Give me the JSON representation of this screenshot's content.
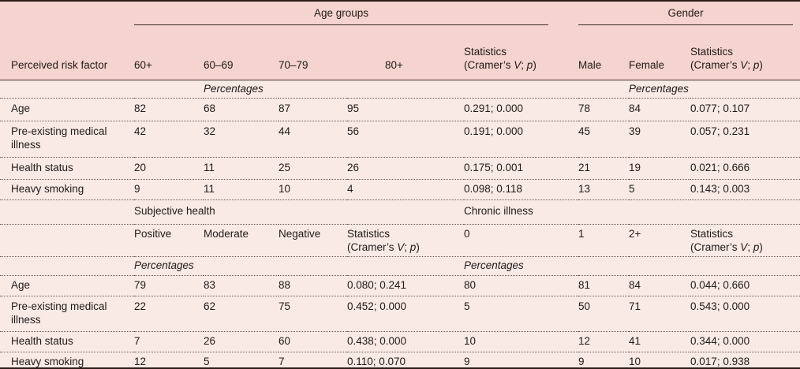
{
  "colors": {
    "header_bg": "#f5d3ce",
    "body_bg": "#f9eae6",
    "rule_dark": "#2b1d18",
    "text": "#201b19"
  },
  "header": {
    "risk_factor_label": "Perceived risk factor",
    "age_groups_label": "Age groups",
    "gender_label": "Gender",
    "age_cols": [
      "60+",
      "60–69",
      "70–79",
      "80+"
    ],
    "gender_cols": [
      "Male",
      "Female"
    ]
  },
  "stats_label": {
    "line1": "Statistics",
    "line2_prefix": "(Cramer’s ",
    "v": "V",
    "separator": "; ",
    "p": "p",
    "suffix": ")"
  },
  "section1": {
    "percentages_left": "Percentages",
    "percentages_right": "Percentages",
    "rows": [
      {
        "label": "Age",
        "values": [
          "82",
          "68",
          "87",
          "95"
        ],
        "stat1": "0.291; 0.000",
        "gender": [
          "78",
          "84"
        ],
        "stat2": "0.077; 0.107"
      },
      {
        "label": "Pre-existing medical illness",
        "values": [
          "42",
          "32",
          "44",
          "56"
        ],
        "stat1": "0.191; 0.000",
        "gender": [
          "45",
          "39"
        ],
        "stat2": "0.057; 0.231"
      },
      {
        "label": "Health status",
        "values": [
          "20",
          "11",
          "25",
          "26"
        ],
        "stat1": "0.175; 0.001",
        "gender": [
          "21",
          "19"
        ],
        "stat2": "0.021; 0.666"
      },
      {
        "label": "Heavy smoking",
        "values": [
          "9",
          "11",
          "10",
          "4"
        ],
        "stat1": "0.098; 0.118",
        "gender": [
          "13",
          "5"
        ],
        "stat2": "0.143; 0.003"
      }
    ]
  },
  "section2": {
    "subjective_health_label": "Subjective health",
    "chronic_illness_label": "Chronic illness",
    "subjective_cols": [
      "Positive",
      "Moderate",
      "Negative"
    ],
    "chronic_cols": [
      "0",
      "1",
      "2+"
    ],
    "percentages_left": "Percentages",
    "percentages_right": "Percentages",
    "rows": [
      {
        "label": "Age",
        "subjective": [
          "79",
          "83",
          "88"
        ],
        "stat1": "0.080; 0.241",
        "chronic": [
          "80",
          "81",
          "84"
        ],
        "stat2": "0.044; 0.660"
      },
      {
        "label": "Pre-existing medical illness",
        "subjective": [
          "22",
          "62",
          "75"
        ],
        "stat1": "0.452; 0.000",
        "chronic": [
          "5",
          "50",
          "71"
        ],
        "stat2": "0.543; 0.000"
      },
      {
        "label": "Health status",
        "subjective": [
          "7",
          "26",
          "60"
        ],
        "stat1": "0.438; 0.000",
        "chronic": [
          "10",
          "12",
          "41"
        ],
        "stat2": "0.344; 0.000"
      },
      {
        "label": "Heavy smoking",
        "subjective": [
          "12",
          "5",
          "7"
        ],
        "stat1": "0.110; 0.070",
        "chronic": [
          "9",
          "9",
          "10"
        ],
        "stat2": "0.017; 0.938"
      }
    ]
  }
}
